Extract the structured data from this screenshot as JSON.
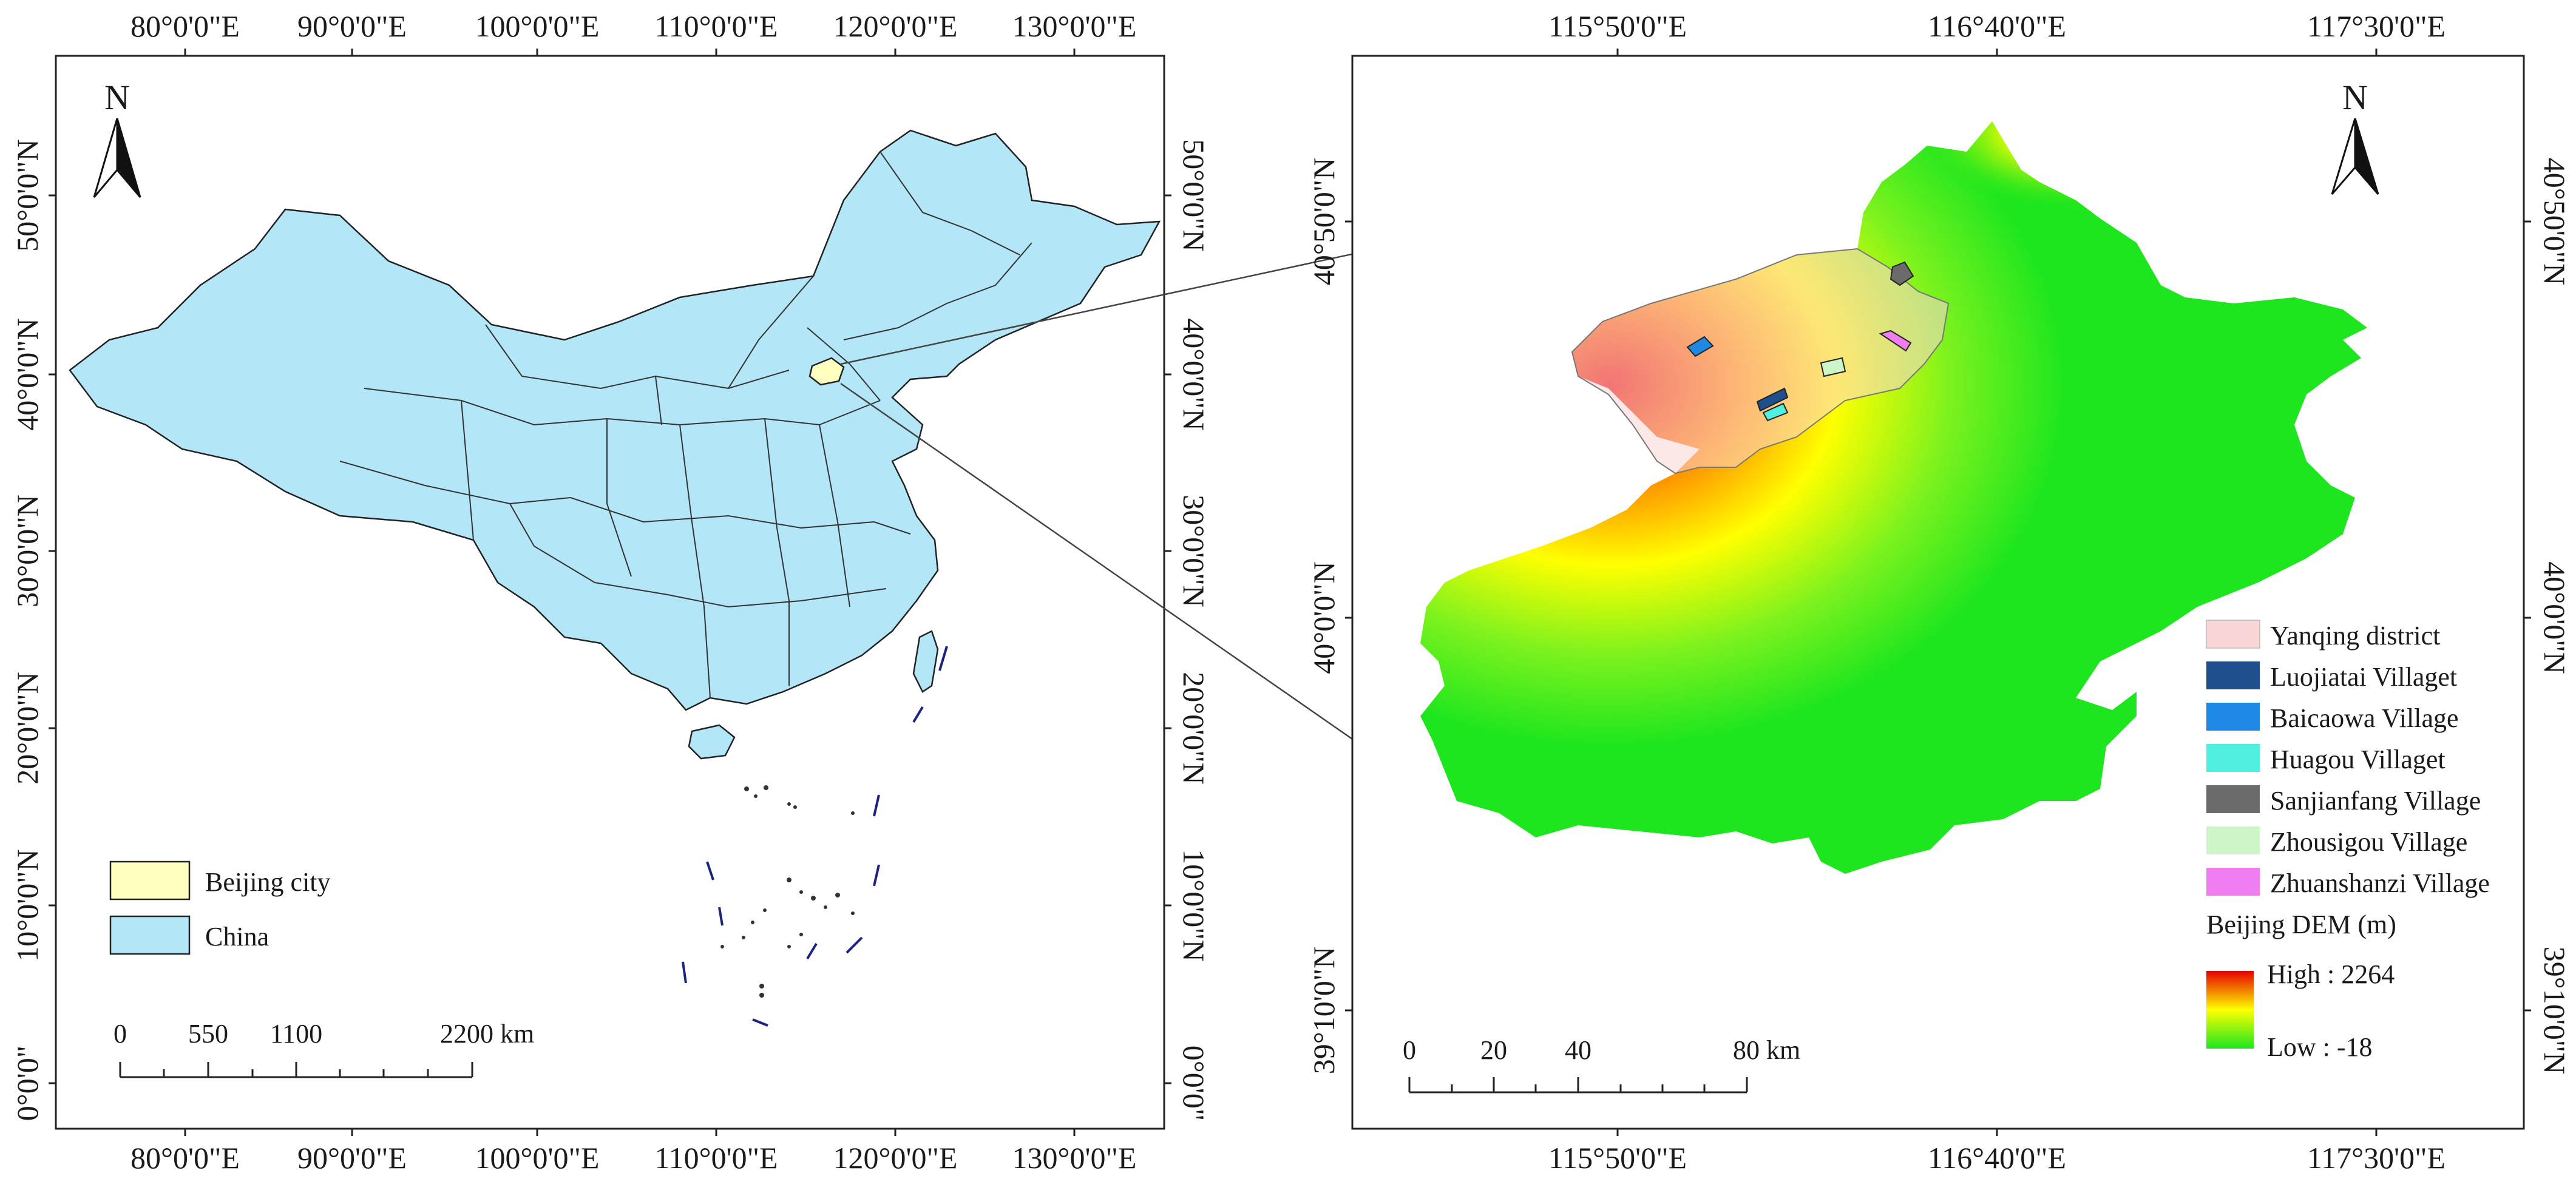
{
  "left_map": {
    "top_ticks": [
      "80°0'0\"E",
      "90°0'0\"E",
      "100°0'0\"E",
      "110°0'0\"E",
      "120°0'0\"E",
      "130°0'0\"E"
    ],
    "bottom_ticks": [
      "80°0'0\"E",
      "90°0'0\"E",
      "100°0'0\"E",
      "110°0'0\"E",
      "120°0'0\"E",
      "130°0'0\"E"
    ],
    "left_ticks": [
      "50°0'0\"N",
      "40°0'0\"N",
      "30°0'0\"N",
      "20°0'0\"N",
      "10°0'0\"N",
      "0°0'0\""
    ],
    "right_ticks": [
      "50°0'0\"N",
      "40°0'0\"N",
      "30°0'0\"N",
      "20°0'0\"N",
      "10°0'0\"N",
      "0°0'0\""
    ],
    "north_label": "N",
    "legend": [
      {
        "label": "Beijing city",
        "color": "#ffffc0"
      },
      {
        "label": "China",
        "color": "#b3e6f7"
      }
    ],
    "scale_labels": [
      "0",
      "550",
      "1100",
      "2200 km"
    ]
  },
  "right_map": {
    "top_ticks": [
      "115°50'0\"E",
      "116°40'0\"E",
      "117°30'0\"E"
    ],
    "bottom_ticks": [
      "115°50'0\"E",
      "116°40'0\"E",
      "117°30'0\"E"
    ],
    "left_ticks": [
      "40°50'0\"N",
      "40°0'0\"N",
      "39°10'0\"N"
    ],
    "right_ticks": [
      "40°50'0\"N",
      "40°0'0\"N",
      "39°10'0\"N"
    ],
    "north_label": "N",
    "legend": [
      {
        "label": "Yanqing district",
        "color": "#fbd6d6"
      },
      {
        "label": "Luojiatai Villaget",
        "color": "#1f4e8c"
      },
      {
        "label": "Baicaowa Village",
        "color": "#1e88e5"
      },
      {
        "label": "Huagou Villaget",
        "color": "#4ff0e0"
      },
      {
        "label": "Sanjianfang Village",
        "color": "#6b6b6b"
      },
      {
        "label": "Zhousigou Village",
        "color": "#cdf5c8"
      },
      {
        "label": "Zhuanshanzi Village",
        "color": "#f07ef0"
      }
    ],
    "dem_title": "Beijing DEM (m)",
    "dem_high": "High : 2264",
    "dem_low": "Low : -18",
    "dem_colors": {
      "high": "#e60000",
      "mid": "#ffff00",
      "low": "#1ee61e"
    },
    "scale_labels": [
      "0",
      "20",
      "40",
      "80 km"
    ]
  }
}
